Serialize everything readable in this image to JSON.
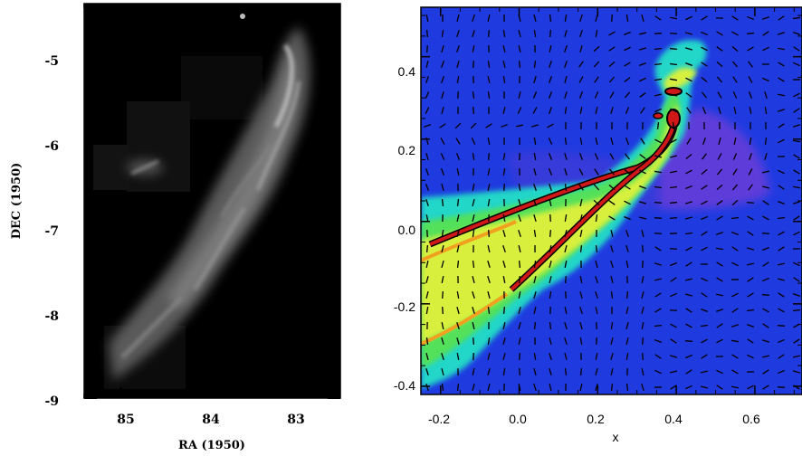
{
  "figure": {
    "left_panel": {
      "xlabel": "RA (1950)",
      "ylabel": "DEC (1950)",
      "xticks": [
        "85",
        "84",
        "83"
      ],
      "yticks": [
        "-5",
        "-6",
        "-7",
        "-8",
        "-9"
      ]
    },
    "right_panel": {
      "xlabel": "x",
      "ylabel": "",
      "xticks": [
        "-0.2",
        "0.0",
        "0.2",
        "0.4",
        "0.6"
      ],
      "yticks": [
        "0.4",
        "0.2",
        "0.0",
        "-0.2",
        "-0.4"
      ]
    }
  },
  "chart_data": [
    {
      "type": "image",
      "xlabel": "RA (1950)",
      "ylabel": "DEC (1950)",
      "xlim": [
        85.4,
        82.6
      ],
      "ylim": [
        -9.0,
        -4.45
      ],
      "x_ticks": [
        85,
        84,
        83
      ],
      "y_ticks": [
        -5,
        -6,
        -7,
        -8,
        -9
      ],
      "colormap": "grayscale"
    },
    {
      "type": "heatmap",
      "xlabel": "x",
      "ylabel": "",
      "xlim": [
        -0.25,
        0.72
      ],
      "ylim": [
        -0.42,
        0.52
      ],
      "x_ticks": [
        -0.2,
        0.0,
        0.2,
        0.4,
        0.6
      ],
      "y_ticks": [
        0.4,
        0.2,
        0.0,
        -0.2,
        -0.4
      ],
      "colormap": "rainbow",
      "overlay": "velocity vectors",
      "ridges": [
        {
          "points": [
            [
              -0.25,
              -0.08
            ],
            [
              -0.05,
              0.04
            ],
            [
              0.15,
              0.12
            ],
            [
              0.32,
              0.2
            ],
            [
              0.4,
              0.28
            ]
          ]
        },
        {
          "points": [
            [
              -0.25,
              -0.3
            ],
            [
              -0.05,
              -0.16
            ],
            [
              0.12,
              0.02
            ],
            [
              0.3,
              0.2
            ],
            [
              0.4,
              0.29
            ]
          ]
        }
      ]
    }
  ]
}
